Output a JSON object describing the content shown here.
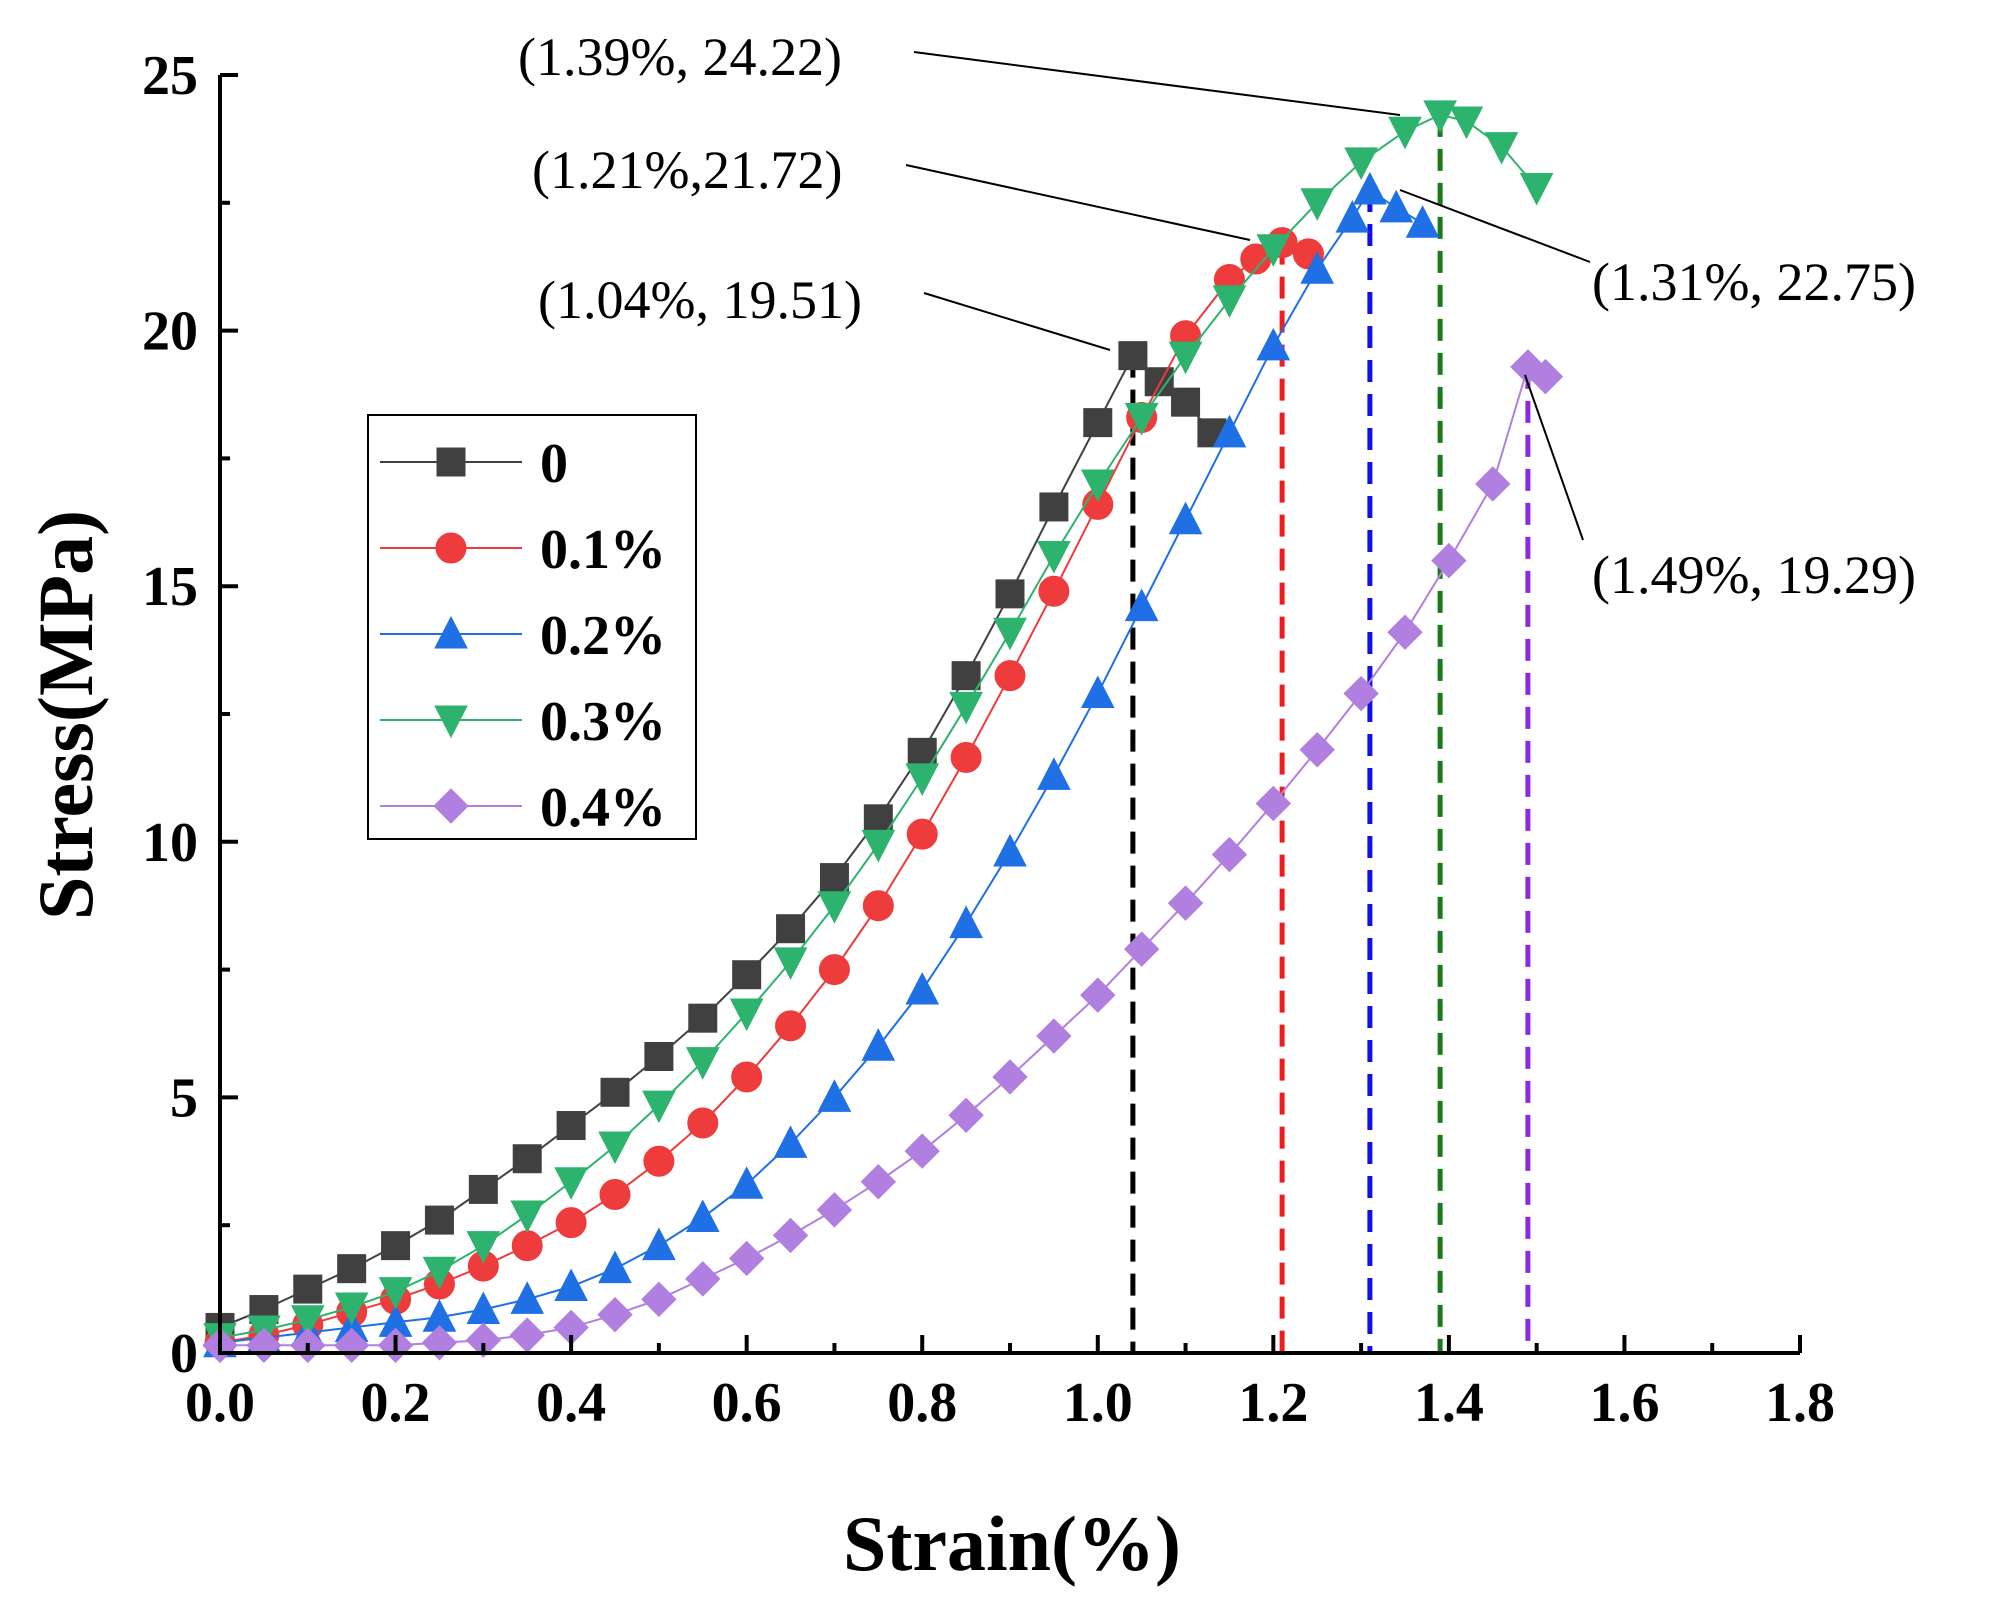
{
  "chart_data": {
    "type": "scatter",
    "title": "",
    "xlabel": "Strain(%)",
    "ylabel": "Stress(MPa)",
    "xlim": [
      0,
      1.8
    ],
    "ylim": [
      0,
      25
    ],
    "x_ticks": [
      "0.0",
      "0.2",
      "0.4",
      "0.6",
      "0.8",
      "1.0",
      "1.2",
      "1.4",
      "1.6",
      "1.8"
    ],
    "y_ticks": [
      "0",
      "5",
      "10",
      "15",
      "20",
      "25"
    ],
    "legend_position": "center-left",
    "series": [
      {
        "name": "0",
        "color": "#404040",
        "marker": "square",
        "x": [
          0.0,
          0.05,
          0.1,
          0.15,
          0.2,
          0.25,
          0.3,
          0.35,
          0.4,
          0.45,
          0.5,
          0.55,
          0.6,
          0.65,
          0.7,
          0.75,
          0.8,
          0.85,
          0.9,
          0.95,
          1.0,
          1.04,
          1.07,
          1.1,
          1.13
        ],
        "y": [
          0.5,
          0.85,
          1.25,
          1.65,
          2.1,
          2.6,
          3.2,
          3.8,
          4.45,
          5.1,
          5.8,
          6.55,
          7.4,
          8.3,
          9.3,
          10.45,
          11.75,
          13.25,
          14.85,
          16.55,
          18.2,
          19.51,
          19.0,
          18.6,
          18.0
        ]
      },
      {
        "name": "0.1%",
        "color": "#ee3b3b",
        "marker": "circle",
        "x": [
          0.0,
          0.05,
          0.1,
          0.15,
          0.2,
          0.25,
          0.3,
          0.35,
          0.4,
          0.45,
          0.5,
          0.55,
          0.6,
          0.65,
          0.7,
          0.75,
          0.8,
          0.85,
          0.9,
          0.95,
          1.0,
          1.05,
          1.1,
          1.15,
          1.18,
          1.21,
          1.24
        ],
        "y": [
          0.2,
          0.35,
          0.55,
          0.8,
          1.05,
          1.35,
          1.7,
          2.1,
          2.55,
          3.1,
          3.75,
          4.5,
          5.4,
          6.4,
          7.5,
          8.75,
          10.15,
          11.65,
          13.25,
          14.9,
          16.6,
          18.3,
          19.9,
          21.0,
          21.4,
          21.72,
          21.5
        ]
      },
      {
        "name": "0.2%",
        "color": "#1f6fe5",
        "marker": "triangle-up",
        "x": [
          0.0,
          0.05,
          0.1,
          0.15,
          0.2,
          0.25,
          0.3,
          0.35,
          0.4,
          0.45,
          0.5,
          0.55,
          0.6,
          0.65,
          0.7,
          0.75,
          0.8,
          0.85,
          0.9,
          0.95,
          1.0,
          1.05,
          1.1,
          1.15,
          1.2,
          1.25,
          1.29,
          1.31,
          1.34,
          1.37
        ],
        "y": [
          0.2,
          0.3,
          0.4,
          0.5,
          0.6,
          0.7,
          0.85,
          1.05,
          1.3,
          1.65,
          2.1,
          2.65,
          3.3,
          4.1,
          5.0,
          6.0,
          7.1,
          8.4,
          9.8,
          11.3,
          12.9,
          14.6,
          16.3,
          18.0,
          19.7,
          21.2,
          22.2,
          22.75,
          22.4,
          22.1
        ]
      },
      {
        "name": "0.3%",
        "color": "#2eb36e",
        "marker": "triangle-down",
        "x": [
          0.0,
          0.05,
          0.1,
          0.15,
          0.2,
          0.25,
          0.3,
          0.35,
          0.4,
          0.45,
          0.5,
          0.55,
          0.6,
          0.65,
          0.7,
          0.75,
          0.8,
          0.85,
          0.9,
          0.95,
          1.0,
          1.05,
          1.1,
          1.15,
          1.2,
          1.25,
          1.3,
          1.35,
          1.39,
          1.42,
          1.46,
          1.5
        ],
        "y": [
          0.3,
          0.45,
          0.65,
          0.9,
          1.2,
          1.6,
          2.1,
          2.7,
          3.35,
          4.05,
          4.85,
          5.7,
          6.65,
          7.65,
          8.75,
          9.95,
          11.25,
          12.65,
          14.1,
          15.6,
          17.0,
          18.3,
          19.5,
          20.6,
          21.6,
          22.5,
          23.3,
          23.9,
          24.22,
          24.1,
          23.6,
          22.8
        ]
      },
      {
        "name": "0.4%",
        "color": "#b07fe0",
        "marker": "diamond",
        "x": [
          0.0,
          0.05,
          0.1,
          0.15,
          0.2,
          0.25,
          0.3,
          0.35,
          0.4,
          0.45,
          0.5,
          0.55,
          0.6,
          0.65,
          0.7,
          0.75,
          0.8,
          0.85,
          0.9,
          0.95,
          1.0,
          1.05,
          1.1,
          1.15,
          1.2,
          1.25,
          1.3,
          1.35,
          1.4,
          1.45,
          1.49,
          1.51
        ],
        "y": [
          0.15,
          0.15,
          0.15,
          0.15,
          0.15,
          0.2,
          0.25,
          0.35,
          0.5,
          0.75,
          1.05,
          1.45,
          1.85,
          2.3,
          2.8,
          3.35,
          3.95,
          4.65,
          5.4,
          6.2,
          7.0,
          7.9,
          8.8,
          9.75,
          10.75,
          11.8,
          12.9,
          14.1,
          15.5,
          17.0,
          19.29,
          19.1
        ]
      }
    ],
    "peak_lines": [
      {
        "x": 1.04,
        "y": 19.51,
        "color": "#000000"
      },
      {
        "x": 1.21,
        "y": 21.72,
        "color": "#ee1c1c"
      },
      {
        "x": 1.31,
        "y": 22.75,
        "color": "#1010ee"
      },
      {
        "x": 1.39,
        "y": 24.22,
        "color": "#1a7a1a"
      },
      {
        "x": 1.49,
        "y": 19.29,
        "color": "#8a2be2"
      }
    ],
    "annotations": [
      {
        "text": "(1.39%, 24.22)",
        "x": 1.39,
        "y": 24.22
      },
      {
        "text": "(1.21%,21.72)",
        "x": 1.21,
        "y": 21.72
      },
      {
        "text": "(1.04%, 19.51)",
        "x": 1.04,
        "y": 19.51
      },
      {
        "text": "(1.31%, 22.75)",
        "x": 1.31,
        "y": 22.75
      },
      {
        "text": "(1.49%, 19.29)",
        "x": 1.49,
        "y": 19.29
      }
    ]
  }
}
